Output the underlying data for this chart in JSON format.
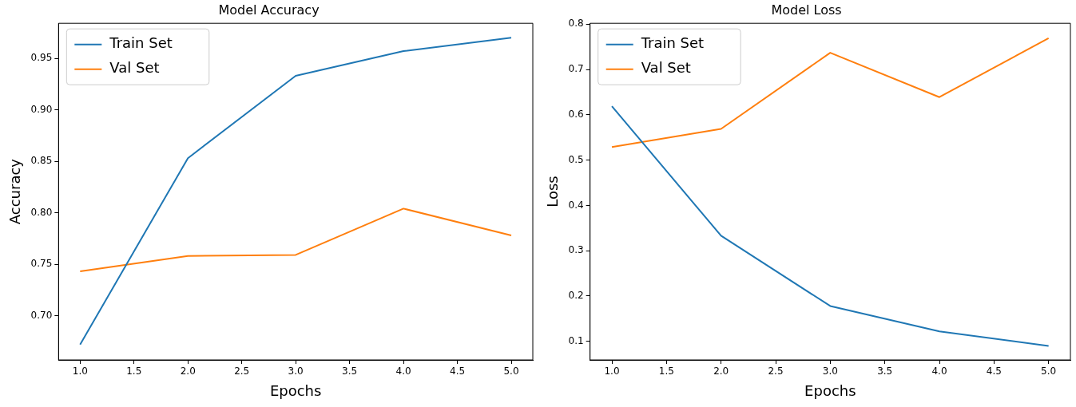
{
  "chart_data": [
    {
      "type": "line",
      "title": "Model Accuracy",
      "xlabel": "Epochs",
      "ylabel": "Accuracy",
      "x": [
        1,
        2,
        3,
        4,
        5
      ],
      "series": [
        {
          "name": "Train Set",
          "color": "#1f77b4",
          "values": [
            0.672,
            0.853,
            0.933,
            0.957,
            0.97
          ]
        },
        {
          "name": "Val Set",
          "color": "#ff7f0e",
          "values": [
            0.743,
            0.758,
            0.759,
            0.804,
            0.778
          ]
        }
      ],
      "xlim": [
        0.8,
        5.2
      ],
      "ylim": [
        0.657,
        0.984
      ],
      "xticks": [
        {
          "value": 1,
          "label": "1.0"
        },
        1.5,
        {
          "value": 2,
          "label": "2.0"
        },
        2.5,
        {
          "value": 3,
          "label": "3.0"
        },
        3.5,
        {
          "value": 4,
          "label": "4.0"
        },
        4.5,
        {
          "value": 5,
          "label": "5.0"
        }
      ],
      "yticks": [
        {
          "value": 0.7,
          "label": "0.70"
        },
        0.75,
        {
          "value": 0.8,
          "label": "0.80"
        },
        0.85,
        {
          "value": 0.9,
          "label": "0.90"
        },
        0.95
      ],
      "legend": "top left",
      "grid": false,
      "marker": "none",
      "line_style": "solid"
    },
    {
      "type": "line",
      "title": "Model Loss",
      "xlabel": "Epochs",
      "ylabel": "Loss",
      "x": [
        1,
        2,
        3,
        4,
        5
      ],
      "series": [
        {
          "name": "Train Set",
          "color": "#1f77b4",
          "values": [
            0.619,
            0.333,
            0.178,
            0.122,
            0.09
          ]
        },
        {
          "name": "Val Set",
          "color": "#ff7f0e",
          "values": [
            0.529,
            0.569,
            0.737,
            0.639,
            0.769
          ]
        }
      ],
      "xlim": [
        0.8,
        5.2
      ],
      "ylim": [
        0.059,
        0.802
      ],
      "xticks": [
        {
          "value": 1,
          "label": "1.0"
        },
        1.5,
        {
          "value": 2,
          "label": "2.0"
        },
        2.5,
        {
          "value": 3,
          "label": "3.0"
        },
        3.5,
        {
          "value": 4,
          "label": "4.0"
        },
        4.5,
        {
          "value": 5,
          "label": "5.0"
        }
      ],
      "yticks": [
        0.1,
        0.2,
        0.3,
        0.4,
        0.5,
        0.6,
        0.7,
        0.8
      ],
      "legend": "top left",
      "grid": false,
      "marker": "none",
      "line_style": "solid"
    }
  ]
}
